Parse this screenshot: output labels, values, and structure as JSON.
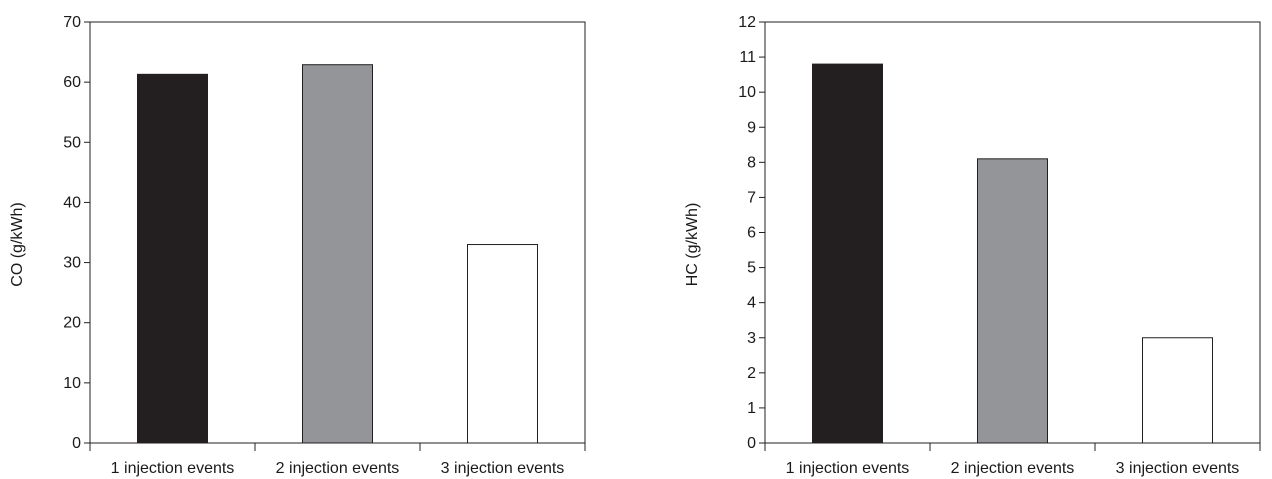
{
  "chart_data": [
    {
      "type": "bar",
      "categories": [
        "1 injection events",
        "2 injection events",
        "3 injection events"
      ],
      "values": [
        61.3,
        62.9,
        33.0
      ],
      "colors": [
        "#231f20",
        "#939598",
        "#ffffff"
      ],
      "ylabel": "CO (g/kWh)",
      "xlabel": "",
      "ylim": [
        0,
        70
      ],
      "yticks": [
        0,
        10,
        20,
        30,
        40,
        50,
        60,
        70
      ],
      "grid": false,
      "legend": "none"
    },
    {
      "type": "bar",
      "categories": [
        "1 injection events",
        "2 injection events",
        "3 injection events"
      ],
      "values": [
        10.8,
        8.1,
        3.0
      ],
      "colors": [
        "#231f20",
        "#939598",
        "#ffffff"
      ],
      "ylabel": "HC (g/kWh)",
      "xlabel": "",
      "ylim": [
        0,
        12
      ],
      "yticks": [
        0,
        1,
        2,
        3,
        4,
        5,
        6,
        7,
        8,
        9,
        10,
        11,
        12
      ],
      "grid": false,
      "legend": "none"
    }
  ]
}
